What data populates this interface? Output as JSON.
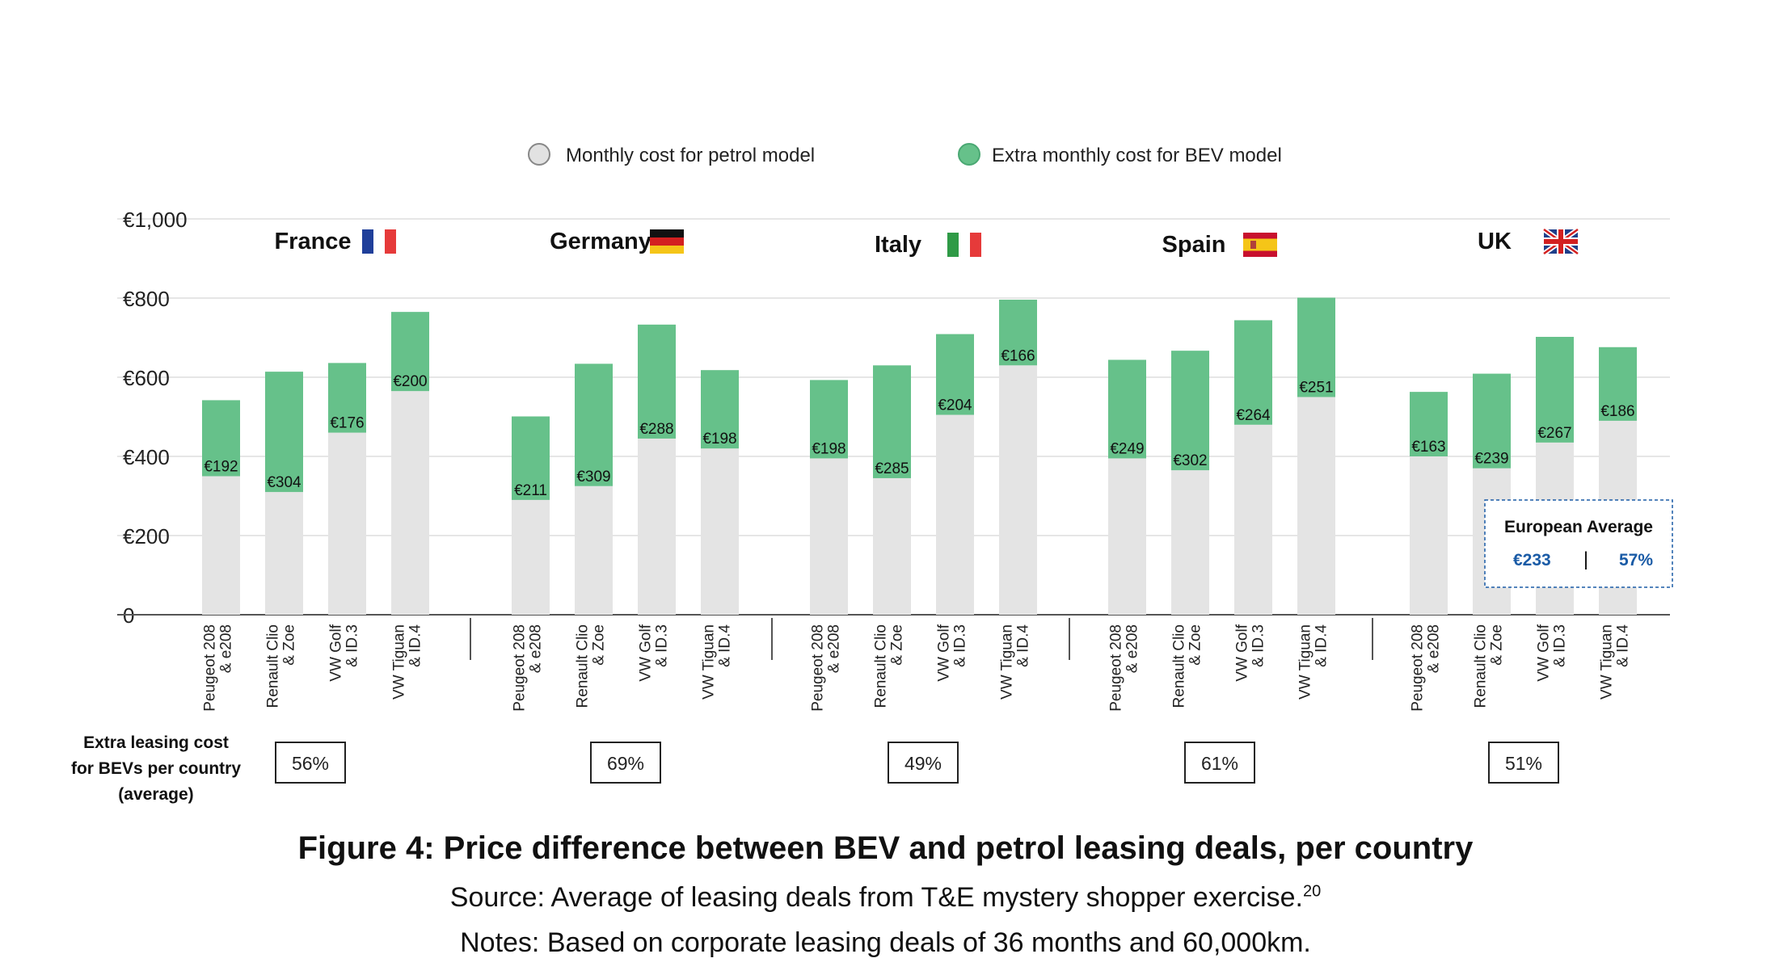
{
  "chart_data": {
    "type": "bar",
    "stacked": true,
    "title": "Figure 4: Price difference between BEV and petrol leasing deals, per country",
    "y_ticks": [
      "0",
      "€200",
      "€400",
      "€600",
      "€800",
      "€1,000"
    ],
    "ylim": [
      0,
      1000
    ],
    "grid": true,
    "legend_position": "top",
    "colors": {
      "petrol": "#e4e4e4",
      "bev": "#66c18a",
      "grid": "#dddddd",
      "axis": "#555555",
      "avg_accent": "#1a5ba6"
    },
    "series": [
      {
        "name": "Monthly cost for petrol model",
        "key": "petrol"
      },
      {
        "name": "Extra monthly cost for BEV model",
        "key": "bev"
      }
    ],
    "models": [
      "Peugeot 208\n& e208",
      "Renault Clio\n& Zoe",
      "VW Golf\n& ID.3",
      "VW Tiguan\n& ID.4"
    ],
    "countries": [
      {
        "name": "France",
        "flag": "france-flag-icon",
        "petrol": [
          350,
          310,
          460,
          565
        ],
        "bev": [
          192,
          304,
          176,
          200
        ],
        "bev_labels": [
          "€192",
          "€304",
          "€176",
          "€200"
        ],
        "avg": "56%"
      },
      {
        "name": "Germany",
        "flag": "germany-flag-icon",
        "petrol": [
          290,
          325,
          445,
          420
        ],
        "bev": [
          211,
          309,
          288,
          198
        ],
        "bev_labels": [
          "€211",
          "€309",
          "€288",
          "€198"
        ],
        "avg": "69%"
      },
      {
        "name": "Italy",
        "flag": "italy-flag-icon",
        "petrol": [
          395,
          345,
          505,
          630
        ],
        "bev": [
          198,
          285,
          204,
          166
        ],
        "bev_labels": [
          "€198",
          "€285",
          "€204",
          "€166"
        ],
        "avg": "49%"
      },
      {
        "name": "Spain",
        "flag": "spain-flag-icon",
        "petrol": [
          395,
          365,
          480,
          550
        ],
        "bev": [
          249,
          302,
          264,
          251
        ],
        "bev_labels": [
          "€249",
          "€302",
          "€264",
          "€251"
        ],
        "avg": "61%"
      },
      {
        "name": "UK",
        "flag": "uk-flag-icon",
        "petrol": [
          400,
          370,
          435,
          490
        ],
        "bev": [
          163,
          239,
          267,
          186
        ],
        "bev_labels": [
          "€163",
          "€239",
          "€267",
          "€186"
        ],
        "avg": "51%"
      }
    ],
    "row_label": "Extra leasing cost\nfor BEVs per country\n(average)",
    "european_average": {
      "title": "European Average",
      "value": "€233",
      "separator": "|",
      "percent": "57%"
    }
  },
  "caption": {
    "title": "Figure 4: Price difference between BEV and petrol leasing deals, per country",
    "source": "Source: Average of leasing deals from T&E mystery shopper exercise.",
    "footnote": "20",
    "notes": "Notes: Based on corporate leasing deals of 36 months and 60,000km."
  }
}
